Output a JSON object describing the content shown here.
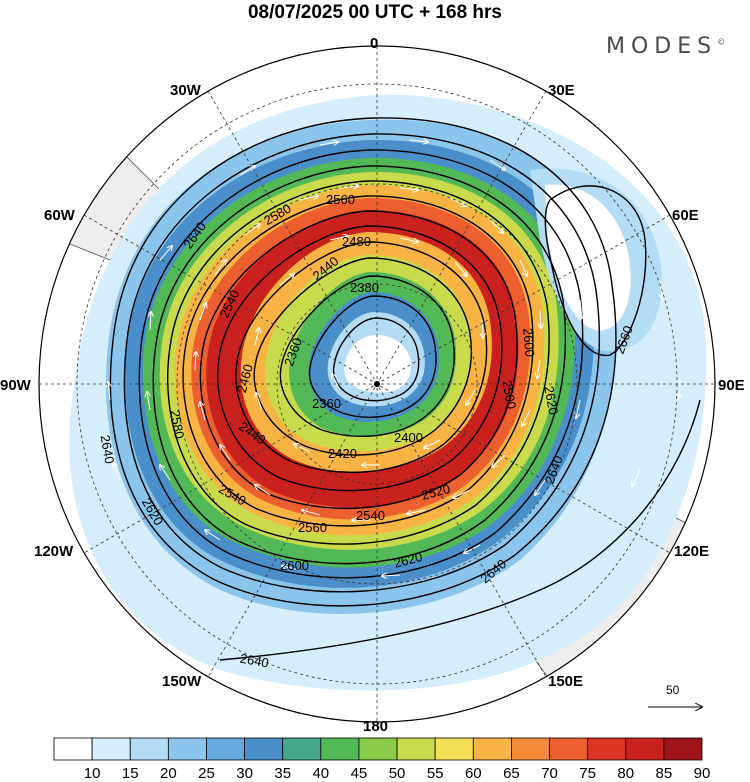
{
  "title": "08/07/2025  00 UTC  + 168 hrs",
  "brand": "MODES",
  "brand_mark": "©",
  "longitude_labels": {
    "n": "0",
    "ne": "30E",
    "e60": "60E",
    "e": "90E",
    "e120": "120E",
    "e150": "150E",
    "s": "180",
    "w150": "150W",
    "w120": "120W",
    "w": "90W",
    "w60": "60W",
    "w30": "30W"
  },
  "contour_labels": [
    "2360",
    "2380",
    "2400",
    "2420",
    "2440",
    "2460",
    "2480",
    "2500",
    "2520",
    "2540",
    "2560",
    "2580",
    "2600",
    "2620",
    "2640",
    "2660"
  ],
  "reference_vector": {
    "value": "50"
  },
  "colorbar": {
    "ticks": [
      "10",
      "15",
      "20",
      "25",
      "30",
      "35",
      "40",
      "45",
      "50",
      "55",
      "60",
      "65",
      "70",
      "75",
      "80",
      "85",
      "90"
    ],
    "colors": [
      "#ffffff",
      "#d6eefb",
      "#b4dcf5",
      "#8cc5ec",
      "#68aade",
      "#4a8fca",
      "#45a88c",
      "#53b957",
      "#8acb4a",
      "#c9db4c",
      "#f5df57",
      "#f7b344",
      "#f38a37",
      "#ec5f2f",
      "#de3527",
      "#c8211e",
      "#9e1418"
    ]
  }
}
